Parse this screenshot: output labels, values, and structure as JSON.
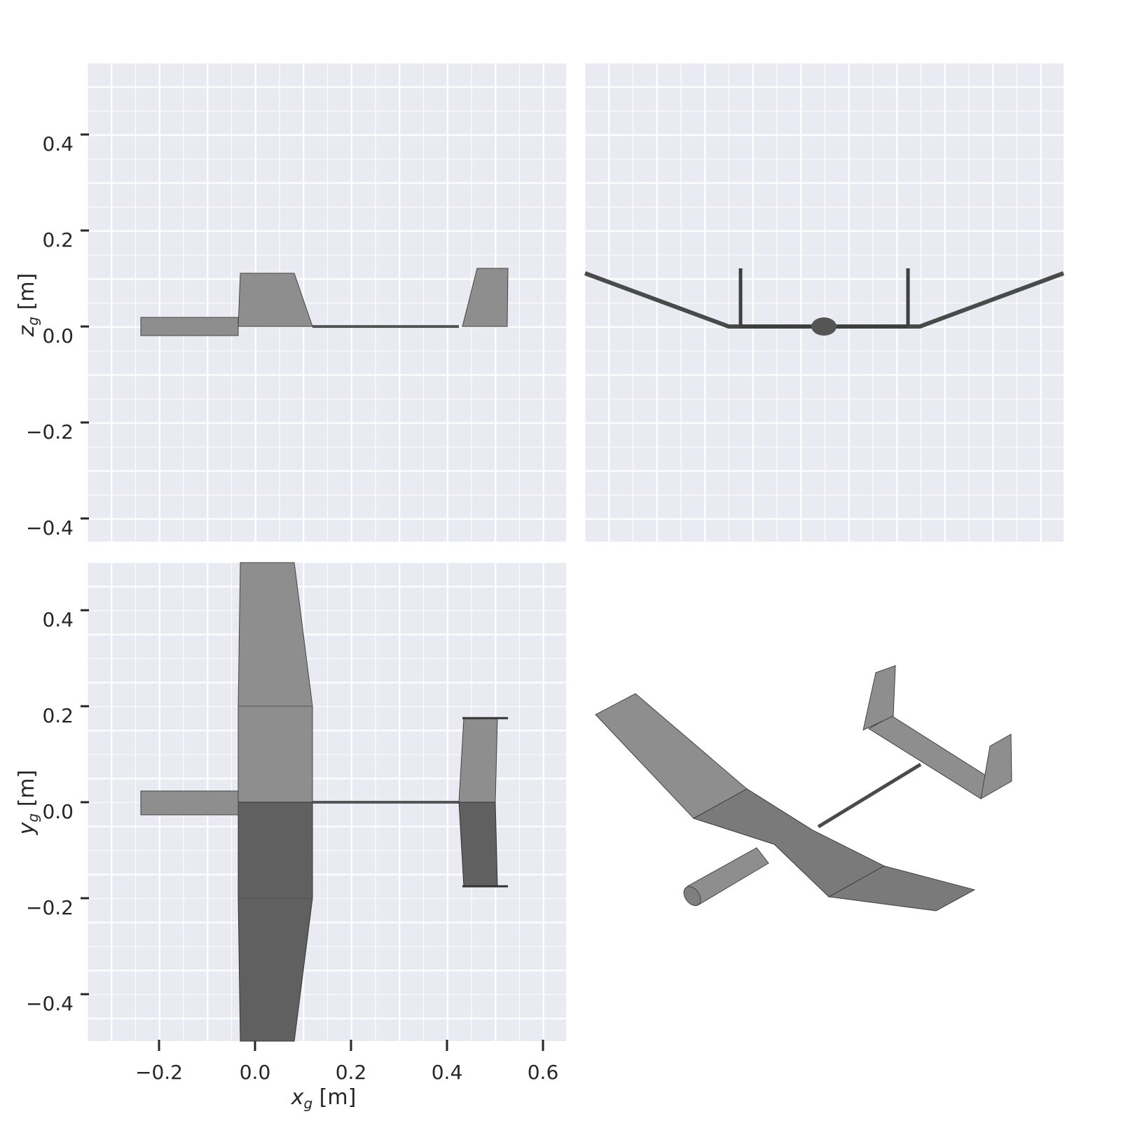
{
  "figure": {
    "panels": {
      "side_view": {
        "ylabel": "z_g [m]",
        "ylabel_base": "z",
        "ylabel_sub": "g",
        "ylabel_unit": " [m]",
        "yticks": [
          {
            "value": 0.4,
            "label": "0.4"
          },
          {
            "value": 0.2,
            "label": "0.2"
          },
          {
            "value": 0.0,
            "label": "0.0"
          },
          {
            "value": -0.2,
            "label": "−0.2"
          },
          {
            "value": -0.4,
            "label": "−0.4"
          }
        ]
      },
      "front_view": {
        "xlim": [
          -0.5,
          0.5
        ],
        "ylim": [
          -0.45,
          0.55
        ]
      },
      "top_view": {
        "xlabel": "x_g [m]",
        "xlabel_base": "x",
        "xlabel_sub": "g",
        "xlabel_unit": " [m]",
        "ylabel": "y_g [m]",
        "ylabel_base": "y",
        "ylabel_sub": "g",
        "ylabel_unit": " [m]",
        "xticks": [
          {
            "value": -0.2,
            "label": "−0.2"
          },
          {
            "value": 0.0,
            "label": "0.0"
          },
          {
            "value": 0.2,
            "label": "0.2"
          },
          {
            "value": 0.4,
            "label": "0.4"
          },
          {
            "value": 0.6,
            "label": "0.6"
          }
        ],
        "yticks": [
          {
            "value": 0.4,
            "label": "0.4"
          },
          {
            "value": 0.2,
            "label": "0.2"
          },
          {
            "value": 0.0,
            "label": "0.0"
          },
          {
            "value": -0.2,
            "label": "−0.2"
          },
          {
            "value": -0.4,
            "label": "−0.4"
          }
        ]
      },
      "iso_view": {}
    },
    "colors": {
      "plot_background": "#eaeaf2",
      "grid": "#ffffff",
      "surface": "#8e8e8e",
      "text": "#262626"
    },
    "grid": true
  }
}
